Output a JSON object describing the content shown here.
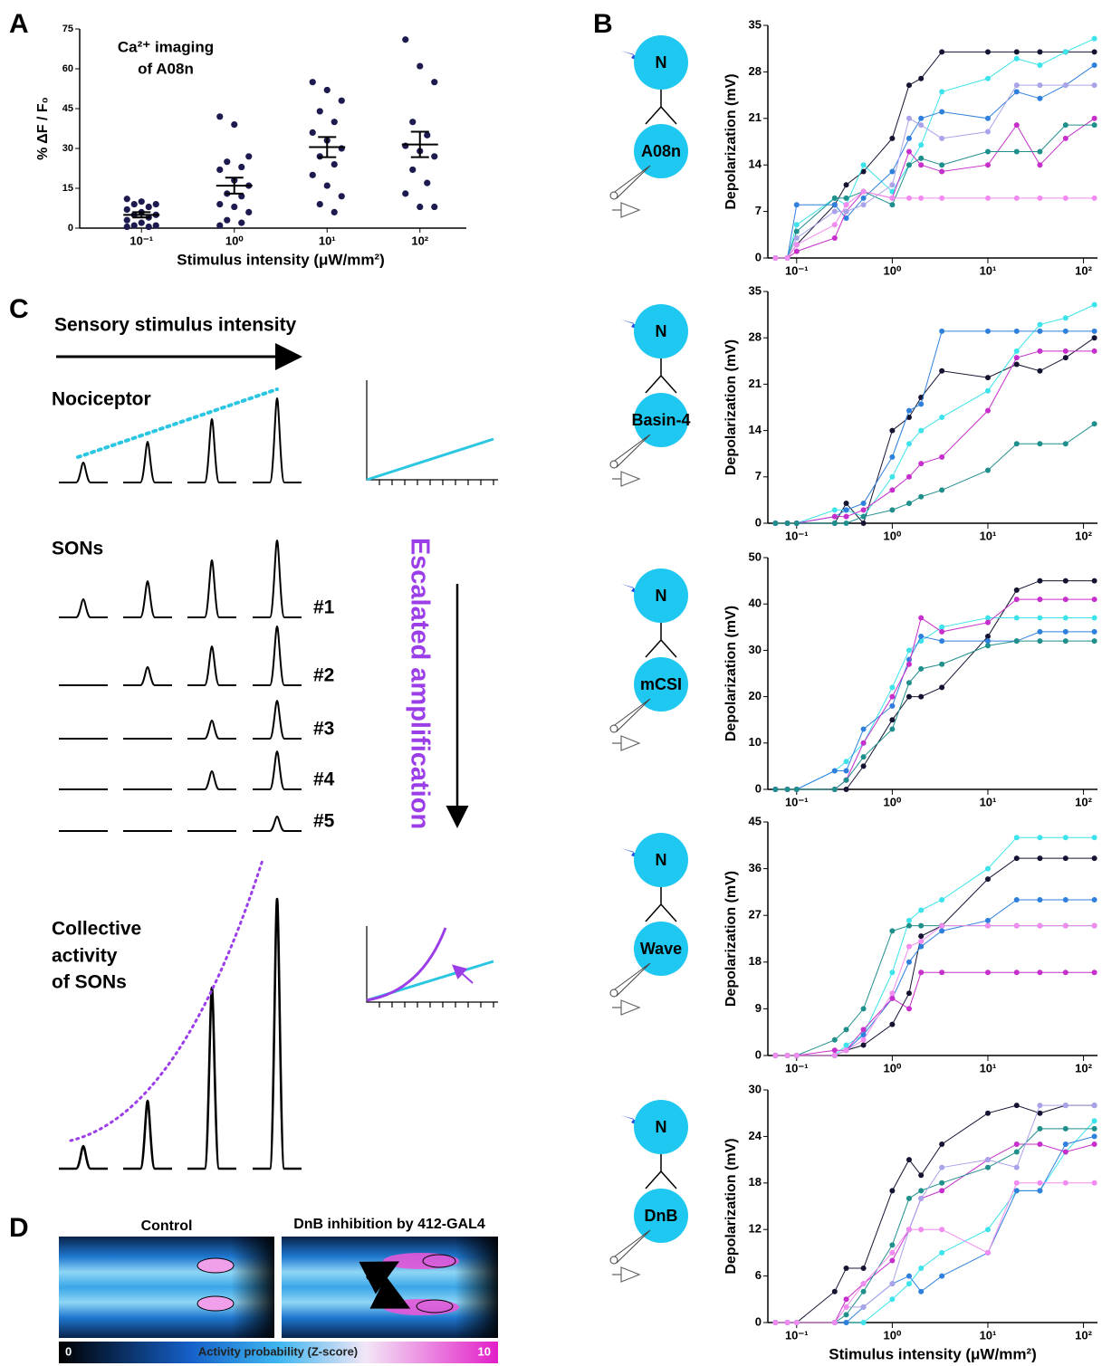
{
  "panel_labels": {
    "a": "A",
    "b": "B",
    "c": "C",
    "d": "D"
  },
  "chart_data": [
    {
      "type": "strip",
      "annotation": [
        "Ca²⁺ imaging",
        "of A08n"
      ],
      "ylabel": "% ΔF / F₀",
      "xlabel": "Stimulus intensity (μW/mm²)",
      "categories": [
        "10⁻¹",
        "10⁰",
        "10¹",
        "10²"
      ],
      "color": "#1c1a4e",
      "values": [
        [
          11,
          10,
          9,
          9,
          8,
          7,
          6,
          5,
          5,
          4,
          3,
          2,
          1,
          1,
          0.5,
          0.5
        ],
        [
          42,
          39,
          27,
          25,
          23,
          22,
          18,
          16,
          13,
          12,
          9,
          8,
          6,
          3,
          2,
          1
        ],
        [
          55,
          52,
          48,
          44,
          40,
          36,
          33,
          30,
          27,
          24,
          20,
          16,
          12,
          9,
          6
        ],
        [
          71,
          61,
          55,
          40,
          35,
          31,
          29,
          27,
          22,
          17,
          13,
          8,
          8
        ]
      ],
      "mean": [
        5,
        16,
        30.5,
        31.5
      ],
      "sem": [
        1,
        3,
        3.8,
        4.8
      ],
      "ylim": [
        0,
        75
      ],
      "yticks": [
        0,
        15,
        30,
        45,
        60,
        75
      ]
    },
    {
      "type": "line",
      "ylabel": "Depolarization (mV)",
      "log_x": true,
      "x": [
        0.06,
        0.08,
        0.1,
        0.25,
        0.33,
        0.5,
        1,
        1.5,
        2,
        3.3,
        10,
        20,
        35,
        65,
        130
      ],
      "xlim": [
        0.05,
        140
      ],
      "xticks": [
        {
          "value": 0.1,
          "label": "10⁻¹"
        },
        {
          "value": 1,
          "label": "10⁰"
        },
        {
          "value": 10,
          "label": "10¹"
        },
        {
          "value": 100,
          "label": "10²"
        }
      ],
      "ylim": [
        0,
        35
      ],
      "yticks": [
        0,
        7,
        14,
        21,
        28,
        35
      ],
      "series": [
        {
          "color": "#141432",
          "values": [
            0,
            0,
            2,
            8,
            11,
            13,
            18,
            26,
            27,
            31,
            31,
            31,
            31,
            31,
            31
          ]
        },
        {
          "color": "#3de3ea",
          "values": [
            0,
            0,
            5,
            9,
            8,
            14,
            10,
            14,
            17,
            25,
            27,
            30,
            29,
            31,
            33
          ]
        },
        {
          "color": "#2f80dd",
          "values": [
            0,
            0,
            8,
            8,
            6,
            9,
            13,
            18,
            21,
            22,
            21,
            25,
            24,
            26,
            29
          ]
        },
        {
          "color": "#c62fcc",
          "values": [
            0,
            0,
            1,
            3,
            7,
            10,
            9,
            16,
            14,
            13,
            14,
            20,
            14,
            18,
            21
          ]
        },
        {
          "color": "#1f8f8c",
          "values": [
            0,
            0,
            4,
            9,
            9,
            10,
            8,
            14,
            15,
            14,
            16,
            16,
            16,
            20,
            20
          ]
        },
        {
          "color": "#a9a3ea",
          "values": [
            0,
            0,
            3,
            7,
            7,
            8,
            11,
            21,
            20,
            18,
            19,
            26,
            26,
            26,
            26
          ]
        },
        {
          "color": "#f28bf0",
          "values": [
            0,
            0,
            2,
            5,
            8,
            10,
            9,
            9,
            9,
            9,
            9,
            9,
            9,
            9,
            9
          ]
        }
      ]
    },
    {
      "type": "line",
      "ylabel": "Depolarization (mV)",
      "log_x": true,
      "x": [
        0.06,
        0.08,
        0.1,
        0.25,
        0.33,
        0.5,
        1,
        1.5,
        2,
        3.3,
        10,
        20,
        35,
        65,
        130
      ],
      "xlim": [
        0.05,
        140
      ],
      "xticks": [
        {
          "value": 0.1,
          "label": "10⁻¹"
        },
        {
          "value": 1,
          "label": "10⁰"
        },
        {
          "value": 10,
          "label": "10¹"
        },
        {
          "value": 100,
          "label": "10²"
        }
      ],
      "ylim": [
        0,
        35
      ],
      "yticks": [
        0,
        7,
        14,
        21,
        28,
        35
      ],
      "series": [
        {
          "color": "#141432",
          "values": [
            0,
            0,
            0,
            0,
            3,
            0,
            14,
            16,
            19,
            23,
            22,
            24,
            23,
            25,
            28
          ]
        },
        {
          "color": "#3de3ea",
          "values": [
            0,
            0,
            0,
            2,
            2,
            1,
            7,
            12,
            14,
            16,
            20,
            26,
            30,
            31,
            33
          ]
        },
        {
          "color": "#2f80dd",
          "values": [
            0,
            0,
            0,
            1,
            2,
            3,
            10,
            17,
            18,
            29,
            29,
            29,
            29,
            29,
            29
          ]
        },
        {
          "color": "#c62fcc",
          "values": [
            0,
            0,
            0,
            1,
            1,
            2,
            5,
            7,
            9,
            10,
            17,
            25,
            26,
            26,
            26
          ]
        },
        {
          "color": "#1f8f8c",
          "values": [
            0,
            0,
            0,
            0,
            0,
            1,
            2,
            3,
            4,
            5,
            8,
            12,
            12,
            12,
            15
          ]
        }
      ]
    },
    {
      "type": "line",
      "ylabel": "Depolarization (mV)",
      "log_x": true,
      "x": [
        0.06,
        0.08,
        0.1,
        0.25,
        0.33,
        0.5,
        1,
        1.5,
        2,
        3.3,
        10,
        20,
        35,
        65,
        130
      ],
      "xlim": [
        0.05,
        140
      ],
      "xticks": [
        {
          "value": 0.1,
          "label": "10⁻¹"
        },
        {
          "value": 1,
          "label": "10⁰"
        },
        {
          "value": 10,
          "label": "10¹"
        },
        {
          "value": 100,
          "label": "10²"
        }
      ],
      "ylim": [
        0,
        50
      ],
      "yticks": [
        0,
        10,
        20,
        30,
        40,
        50
      ],
      "series": [
        {
          "color": "#141432",
          "values": [
            0,
            0,
            0,
            0,
            0,
            5,
            15,
            20,
            20,
            22,
            33,
            43,
            45,
            45,
            45
          ]
        },
        {
          "color": "#3de3ea",
          "values": [
            0,
            0,
            0,
            4,
            6,
            10,
            22,
            30,
            32,
            35,
            37,
            37,
            37,
            37,
            37
          ]
        },
        {
          "color": "#2f80dd",
          "values": [
            0,
            0,
            0,
            4,
            4,
            13,
            18,
            28,
            33,
            32,
            32,
            32,
            34,
            34,
            34
          ]
        },
        {
          "color": "#c62fcc",
          "values": [
            0,
            0,
            0,
            0,
            2,
            10,
            20,
            27,
            37,
            34,
            36,
            41,
            41,
            41,
            41
          ]
        },
        {
          "color": "#1f8f8c",
          "values": [
            0,
            0,
            0,
            0,
            2,
            7,
            13,
            23,
            26,
            27,
            31,
            32,
            32,
            32,
            32
          ]
        }
      ]
    },
    {
      "type": "line",
      "ylabel": "Depolarization (mV)",
      "log_x": true,
      "x": [
        0.06,
        0.08,
        0.1,
        0.25,
        0.33,
        0.5,
        1,
        1.5,
        2,
        3.3,
        10,
        20,
        35,
        65,
        130
      ],
      "xlim": [
        0.05,
        140
      ],
      "xticks": [
        {
          "value": 0.1,
          "label": "10⁻¹"
        },
        {
          "value": 1,
          "label": "10⁰"
        },
        {
          "value": 10,
          "label": "10¹"
        },
        {
          "value": 100,
          "label": "10²"
        }
      ],
      "ylim": [
        0,
        45
      ],
      "yticks": [
        0,
        9,
        18,
        27,
        36,
        45
      ],
      "series": [
        {
          "color": "#141432",
          "values": [
            0,
            0,
            0,
            0,
            1,
            2,
            6,
            12,
            23,
            25,
            34,
            38,
            38,
            38,
            38
          ]
        },
        {
          "color": "#3de3ea",
          "values": [
            0,
            0,
            0,
            0,
            2,
            4,
            16,
            26,
            28,
            30,
            36,
            42,
            42,
            42,
            42
          ]
        },
        {
          "color": "#2f80dd",
          "values": [
            0,
            0,
            0,
            0,
            1,
            4,
            11,
            18,
            21,
            24,
            26,
            30,
            30,
            30,
            30
          ]
        },
        {
          "color": "#c62fcc",
          "values": [
            0,
            0,
            0,
            1,
            1,
            5,
            11,
            9,
            16,
            16,
            16,
            16,
            16,
            16,
            16
          ]
        },
        {
          "color": "#1f8f8c",
          "values": [
            0,
            0,
            0,
            3,
            5,
            9,
            24,
            25,
            25,
            25,
            25,
            25,
            25,
            25,
            25
          ]
        },
        {
          "color": "#f28bf0",
          "values": [
            0,
            0,
            0,
            0,
            1,
            3,
            12,
            21,
            22,
            25,
            25,
            25,
            25,
            25,
            25
          ]
        }
      ]
    },
    {
      "type": "line",
      "ylabel": "Depolarization (mV)",
      "xlabel": "Stimulus intensity (μW/mm²)",
      "log_x": true,
      "x": [
        0.06,
        0.08,
        0.1,
        0.25,
        0.33,
        0.5,
        1,
        1.5,
        2,
        3.3,
        10,
        20,
        35,
        65,
        130
      ],
      "xlim": [
        0.05,
        140
      ],
      "xticks": [
        {
          "value": 0.1,
          "label": "10⁻¹"
        },
        {
          "value": 1,
          "label": "10⁰"
        },
        {
          "value": 10,
          "label": "10¹"
        },
        {
          "value": 100,
          "label": "10²"
        }
      ],
      "ylim": [
        0,
        30
      ],
      "yticks": [
        0,
        6,
        12,
        18,
        24,
        30
      ],
      "series": [
        {
          "color": "#141432",
          "values": [
            0,
            0,
            0,
            4,
            7,
            7,
            17,
            21,
            19,
            23,
            27,
            28,
            27,
            28,
            28
          ]
        },
        {
          "color": "#3de3ea",
          "values": [
            0,
            0,
            0,
            0,
            0,
            0,
            3,
            5,
            7,
            9,
            12,
            17,
            17,
            22,
            26
          ]
        },
        {
          "color": "#2f80dd",
          "values": [
            0,
            0,
            0,
            0,
            0,
            2,
            5,
            6,
            4,
            6,
            9,
            17,
            17,
            23,
            24
          ]
        },
        {
          "color": "#c62fcc",
          "values": [
            0,
            0,
            0,
            0,
            3,
            5,
            8,
            12,
            16,
            17,
            21,
            23,
            23,
            22,
            23
          ]
        },
        {
          "color": "#1f8f8c",
          "values": [
            0,
            0,
            0,
            0,
            1,
            4,
            10,
            16,
            17,
            18,
            20,
            22,
            25,
            25,
            25
          ]
        },
        {
          "color": "#a9a3ea",
          "values": [
            0,
            0,
            0,
            0,
            2,
            2,
            5,
            12,
            16,
            20,
            21,
            20,
            28,
            28,
            28
          ]
        },
        {
          "color": "#f28bf0",
          "values": [
            0,
            0,
            0,
            0,
            2,
            5,
            9,
            12,
            12,
            12,
            9,
            18,
            18,
            18,
            18
          ]
        }
      ]
    }
  ],
  "panel_b_cells": [
    {
      "stimulated": "N",
      "recorded": "A08n"
    },
    {
      "stimulated": "N",
      "recorded": "Basin-4"
    },
    {
      "stimulated": "N",
      "recorded": "mCSI"
    },
    {
      "stimulated": "N",
      "recorded": "Wave"
    },
    {
      "stimulated": "N",
      "recorded": "DnB"
    }
  ],
  "panel_c": {
    "arrow_label": "Sensory stimulus intensity",
    "nociceptor": "Nociceptor",
    "sons": "SONs",
    "son_labels": [
      "#1",
      "#2",
      "#3",
      "#4",
      "#5"
    ],
    "amplification": "Escalated amplification",
    "collective": [
      "Collective",
      "activity",
      "of SONs"
    ]
  },
  "panel_d": {
    "titles": [
      "Control",
      "DnB inhibition by 412-GAL4"
    ],
    "colorbar_min": 0,
    "colorbar_label": "Activity probability (Z-score)",
    "colorbar_max": 10
  }
}
